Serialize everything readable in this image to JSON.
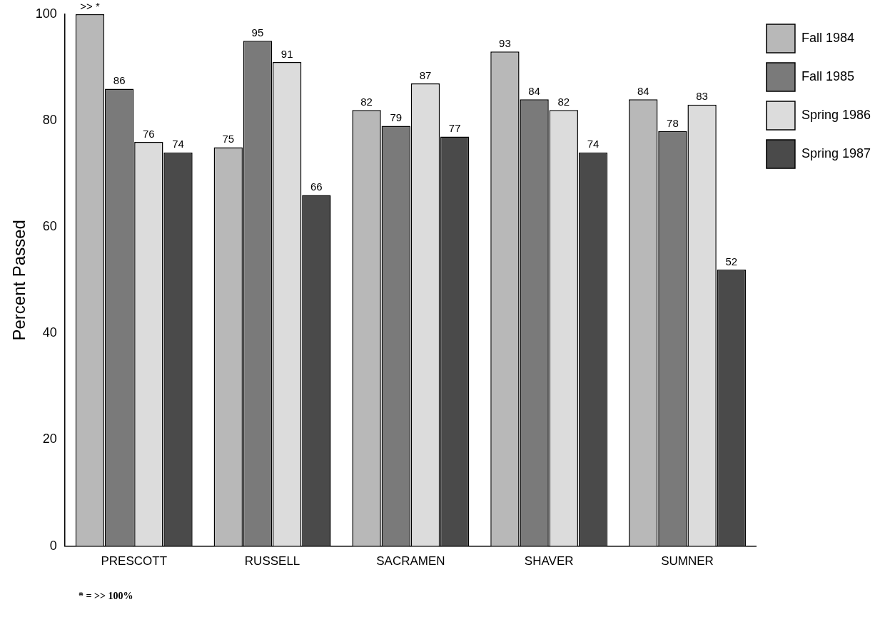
{
  "chart_data": {
    "type": "bar",
    "ylabel": "Percent Passed",
    "categories": [
      "PRESCOTT",
      "RUSSELL",
      "SACRAMEN",
      "SHAVER",
      "SUMNER"
    ],
    "series": [
      {
        "name": "Fall 1984",
        "color": "#b8b8b8",
        "values": [
          100,
          75,
          82,
          93,
          84
        ],
        "value_labels": [
          ">> *",
          "75",
          "82",
          "93",
          "84"
        ]
      },
      {
        "name": "Fall 1985",
        "color": "#7a7a7a",
        "values": [
          86,
          95,
          79,
          84,
          78
        ],
        "value_labels": [
          "86",
          "95",
          "79",
          "84",
          "78"
        ]
      },
      {
        "name": "Spring 1986",
        "color": "#dcdcdc",
        "values": [
          76,
          91,
          87,
          82,
          83
        ],
        "value_labels": [
          "76",
          "91",
          "87",
          "82",
          "83"
        ]
      },
      {
        "name": "Spring 1987",
        "color": "#4a4a4a",
        "values": [
          74,
          66,
          77,
          74,
          52
        ],
        "value_labels": [
          "74",
          "66",
          "77",
          "74",
          "52"
        ]
      }
    ],
    "ylim": [
      0,
      100
    ],
    "yticks": [
      0,
      20,
      40,
      60,
      80,
      100
    ],
    "grid": false,
    "legend": "right",
    "annotations": [
      "* = >> 100%"
    ]
  }
}
